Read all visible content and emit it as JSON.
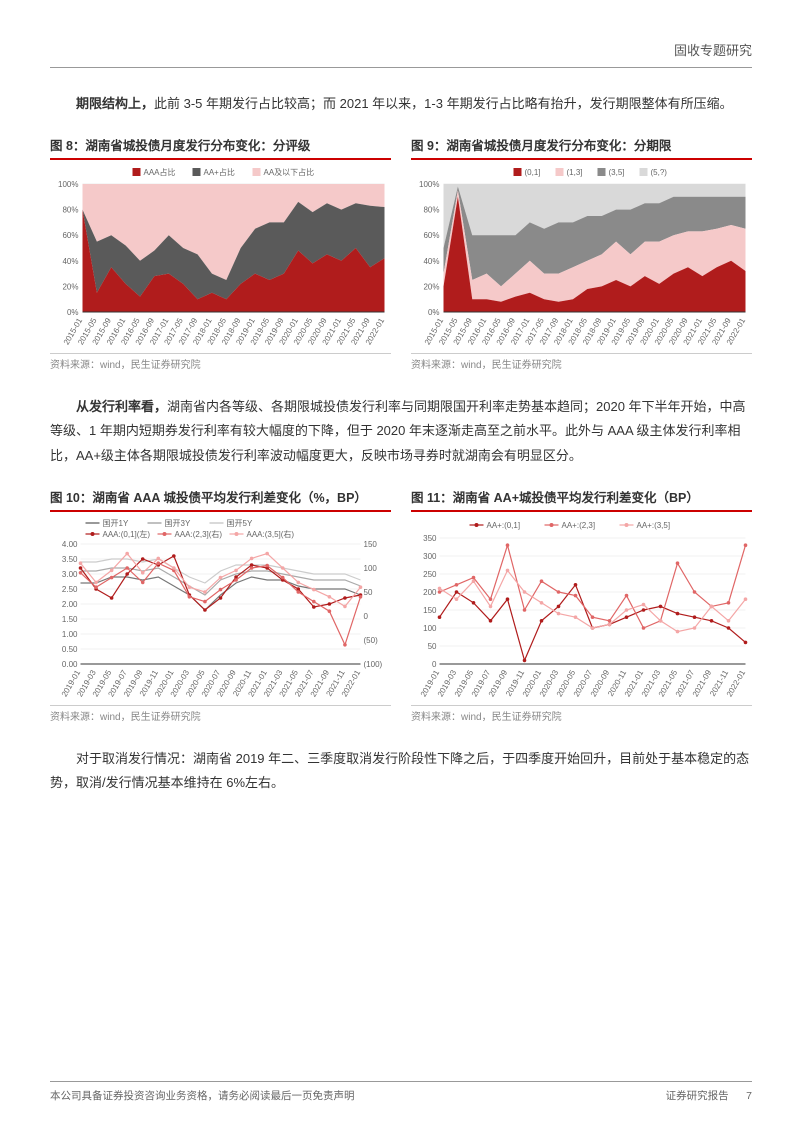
{
  "header": {
    "section_title": "固收专题研究"
  },
  "para1": {
    "bold": "期限结构上，",
    "rest": "此前 3-5 年期发行占比较高；而 2021 年以来，1-3 年期发行占比略有抬升，发行期限整体有所压缩。"
  },
  "chart8": {
    "title": "图 8：湖南省城投债月度发行分布变化：分评级",
    "type": "stacked-area",
    "legend": [
      {
        "label": "AAA占比",
        "color": "#b01c1c"
      },
      {
        "label": "AA+占比",
        "color": "#5a5a5a"
      },
      {
        "label": "AA及以下占比",
        "color": "#f5c9c9"
      }
    ],
    "x_labels": [
      "2015-01",
      "2015-05",
      "2015-09",
      "2016-01",
      "2016-05",
      "2016-09",
      "2017-01",
      "2017-05",
      "2017-09",
      "2018-01",
      "2018-05",
      "2018-09",
      "2019-01",
      "2019-05",
      "2019-09",
      "2020-01",
      "2020-05",
      "2020-09",
      "2021-01",
      "2021-05",
      "2021-09",
      "2022-01"
    ],
    "ylim": [
      0,
      100
    ],
    "ytick_step": 20,
    "y_suffix": "%",
    "series": {
      "aaa": [
        80,
        15,
        35,
        22,
        12,
        28,
        30,
        22,
        10,
        15,
        10,
        22,
        30,
        25,
        30,
        48,
        38,
        45,
        40,
        50,
        35,
        42
      ],
      "aaplus": [
        0,
        40,
        25,
        30,
        28,
        20,
        30,
        28,
        35,
        15,
        15,
        28,
        35,
        45,
        40,
        38,
        40,
        40,
        40,
        35,
        48,
        40
      ],
      "aa_below": [
        20,
        45,
        40,
        48,
        60,
        52,
        40,
        50,
        55,
        70,
        75,
        50,
        35,
        30,
        30,
        14,
        22,
        15,
        20,
        15,
        17,
        18
      ]
    },
    "background_color": "#ffffff",
    "grid_color": "#d9d9d9",
    "source": "资料来源：wind，民生证券研究院"
  },
  "chart9": {
    "title": "图 9：湖南省城投债月度发行分布变化：分期限",
    "type": "stacked-area",
    "legend": [
      {
        "label": "(0,1]",
        "color": "#b01c1c"
      },
      {
        "label": "(1,3]",
        "color": "#f5c9c9"
      },
      {
        "label": "(3,5]",
        "color": "#8a8a8a"
      },
      {
        "label": "(5,?)",
        "color": "#d9d9d9"
      }
    ],
    "x_labels": [
      "2015-01",
      "2015-05",
      "2015-09",
      "2016-01",
      "2016-05",
      "2016-09",
      "2017-01",
      "2017-05",
      "2017-09",
      "2018-01",
      "2018-05",
      "2018-09",
      "2019-01",
      "2019-05",
      "2019-09",
      "2020-01",
      "2020-05",
      "2020-09",
      "2021-01",
      "2021-05",
      "2021-09",
      "2022-01"
    ],
    "ylim": [
      0,
      100
    ],
    "ytick_step": 20,
    "y_suffix": "%",
    "series": {
      "t01": [
        20,
        90,
        10,
        10,
        8,
        12,
        15,
        10,
        8,
        10,
        18,
        20,
        25,
        20,
        28,
        22,
        30,
        35,
        28,
        35,
        40,
        32
      ],
      "t13": [
        10,
        5,
        15,
        20,
        12,
        18,
        25,
        20,
        22,
        25,
        22,
        25,
        30,
        25,
        27,
        33,
        30,
        28,
        35,
        30,
        28,
        33
      ],
      "t35": [
        20,
        3,
        35,
        30,
        40,
        30,
        30,
        35,
        40,
        35,
        35,
        30,
        25,
        35,
        30,
        30,
        30,
        27,
        27,
        25,
        22,
        25
      ],
      "t5p": [
        50,
        2,
        40,
        40,
        40,
        40,
        30,
        35,
        30,
        30,
        25,
        25,
        20,
        20,
        15,
        15,
        10,
        10,
        10,
        10,
        10,
        10
      ]
    },
    "background_color": "#ffffff",
    "grid_color": "#d9d9d9",
    "source": "资料来源：wind，民生证券研究院"
  },
  "para2": {
    "bold": "从发行利率看，",
    "rest": "湖南省内各等级、各期限城投债发行利率与同期限国开利率走势基本趋同；2020 年下半年开始，中高等级、1 年期内短期券发行利率有较大幅度的下降，但于 2020 年末逐渐走高至之前水平。此外与 AAA 级主体发行利率相比，AA+级主体各期限城投债发行利率波动幅度更大，反映市场寻券时就湖南会有明显区分。"
  },
  "chart10": {
    "title": "图 10：湖南省 AAA 城投债平均发行利差变化（%，BP）",
    "type": "multi-line-dual-axis",
    "legend_top": [
      {
        "label": "国开1Y",
        "color": "#777",
        "dash": "none"
      },
      {
        "label": "国开3Y",
        "color": "#aaa",
        "dash": "none"
      },
      {
        "label": "国开5Y",
        "color": "#ccc",
        "dash": "none"
      }
    ],
    "legend_bot": [
      {
        "label": "AAA:(0,1](左)",
        "color": "#b01c1c",
        "marker": "circle"
      },
      {
        "label": "AAA:(2,3](右)",
        "color": "#e06666",
        "marker": "circle"
      },
      {
        "label": "AAA:(3,5](右)",
        "color": "#f4a6a6",
        "marker": "circle"
      }
    ],
    "x_labels": [
      "2019-01",
      "2019-03",
      "2019-05",
      "2019-07",
      "2019-09",
      "2019-11",
      "2020-01",
      "2020-03",
      "2020-05",
      "2020-07",
      "2020-09",
      "2020-11",
      "2021-01",
      "2021-03",
      "2021-05",
      "2021-07",
      "2021-09",
      "2021-11",
      "2022-01"
    ],
    "ylim_left": [
      0,
      4.0
    ],
    "ytick_left": [
      0,
      0.5,
      1.0,
      1.5,
      2.0,
      2.5,
      3.0,
      3.5,
      4.0
    ],
    "ylim_right": [
      -100,
      150
    ],
    "ytick_right": [
      -100,
      -50,
      0,
      50,
      100,
      150
    ],
    "series": {
      "gk1y": [
        2.7,
        2.7,
        2.9,
        2.9,
        2.8,
        2.9,
        2.6,
        2.3,
        1.8,
        2.3,
        2.7,
        2.9,
        2.8,
        2.8,
        2.6,
        2.5,
        2.5,
        2.5,
        2.3
      ],
      "gk3y": [
        3.1,
        3.1,
        3.2,
        3.2,
        3.1,
        3.2,
        2.9,
        2.6,
        2.3,
        2.8,
        3.0,
        3.1,
        3.1,
        3.0,
        2.9,
        2.8,
        2.8,
        2.8,
        2.6
      ],
      "gk5y": [
        3.4,
        3.4,
        3.5,
        3.5,
        3.4,
        3.5,
        3.2,
        2.9,
        2.7,
        3.1,
        3.3,
        3.3,
        3.3,
        3.2,
        3.1,
        3.0,
        3.0,
        3.0,
        2.8
      ],
      "aaa01": [
        3.2,
        2.5,
        2.2,
        3.0,
        3.5,
        3.3,
        3.6,
        2.3,
        1.8,
        2.2,
        2.9,
        3.3,
        3.2,
        2.8,
        2.5,
        1.9,
        2.0,
        2.2,
        2.3
      ],
      "aaa23": [
        90,
        60,
        80,
        100,
        70,
        110,
        95,
        40,
        30,
        55,
        75,
        100,
        105,
        80,
        50,
        30,
        10,
        -60,
        40
      ],
      "aaa35": [
        110,
        70,
        95,
        130,
        90,
        120,
        100,
        60,
        50,
        80,
        95,
        120,
        130,
        100,
        70,
        55,
        40,
        20,
        60
      ]
    },
    "neg_color": "#c00",
    "source": "资料来源：wind，民生证券研究院"
  },
  "chart11": {
    "title": "图 11：湖南省 AA+城投债平均发行利差变化（BP）",
    "type": "multi-line",
    "legend": [
      {
        "label": "AA+:(0,1]",
        "color": "#b01c1c",
        "marker": "circle"
      },
      {
        "label": "AA+:(2,3]",
        "color": "#e06666",
        "marker": "circle"
      },
      {
        "label": "AA+:(3,5]",
        "color": "#f4a6a6",
        "marker": "circle"
      }
    ],
    "x_labels": [
      "2019-01",
      "2019-03",
      "2019-05",
      "2019-07",
      "2019-09",
      "2019-11",
      "2020-01",
      "2020-03",
      "2020-05",
      "2020-07",
      "2020-09",
      "2020-11",
      "2021-01",
      "2021-03",
      "2021-05",
      "2021-07",
      "2021-09",
      "2021-11",
      "2022-01"
    ],
    "ylim": [
      0,
      350
    ],
    "ytick_step": 50,
    "series": {
      "aa01": [
        130,
        200,
        170,
        120,
        180,
        10,
        120,
        160,
        220,
        100,
        110,
        130,
        150,
        160,
        140,
        130,
        120,
        100,
        60
      ],
      "aa23": [
        200,
        220,
        240,
        180,
        330,
        150,
        230,
        200,
        190,
        130,
        120,
        190,
        100,
        120,
        280,
        200,
        160,
        170,
        330
      ],
      "aa35": [
        210,
        180,
        230,
        160,
        260,
        200,
        170,
        140,
        130,
        100,
        110,
        150,
        165,
        120,
        90,
        100,
        160,
        120,
        180
      ]
    },
    "source": "资料来源：wind，民生证券研究院"
  },
  "para3": {
    "text": "对于取消发行情况：湖南省 2019 年二、三季度取消发行阶段性下降之后，于四季度开始回升，目前处于基本稳定的态势，取消/发行情况基本维持在 6%左右。"
  },
  "footer": {
    "left": "本公司具备证券投资咨询业务资格，请务必阅读最后一页免责声明",
    "right": "证券研究报告",
    "page": "7"
  }
}
